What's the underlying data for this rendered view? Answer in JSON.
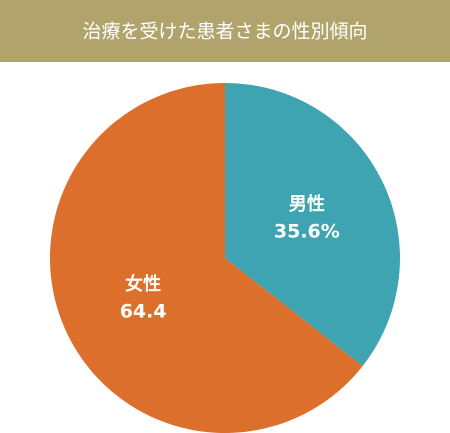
{
  "chart_data": {
    "type": "pie",
    "title": "治療を受けた患者さまの性別傾向",
    "categories": [
      "男性",
      "女性"
    ],
    "values": [
      35.6,
      64.4
    ],
    "value_labels": [
      "35.6%",
      "64.4"
    ],
    "colors": [
      "#3fa4b1",
      "#dc6f2b"
    ],
    "title_background": "#b0a46c"
  }
}
